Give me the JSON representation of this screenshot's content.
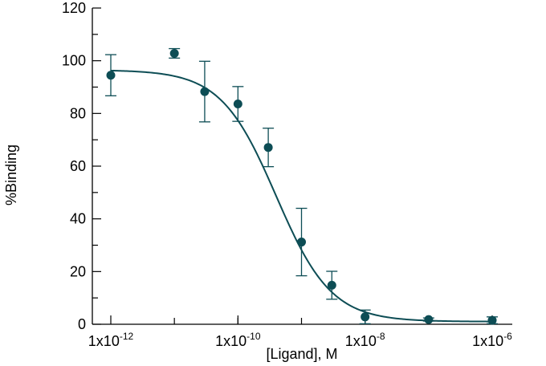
{
  "chart_data": {
    "type": "scatter",
    "xlabel": "[Ligand], M",
    "ylabel": "%Binding",
    "x_scale": "log",
    "xlim": [
      1e-12,
      1e-06
    ],
    "ylim": [
      0,
      120
    ],
    "x_ticks": [
      {
        "value": 1e-12,
        "base": "1x10",
        "exp": "-12"
      },
      {
        "value": 1e-10,
        "base": "1x10",
        "exp": "-10"
      },
      {
        "value": 1e-08,
        "base": "1x10",
        "exp": "-8"
      },
      {
        "value": 1e-06,
        "base": "1x10",
        "exp": "-6"
      }
    ],
    "y_ticks": [
      0,
      20,
      40,
      60,
      80,
      100,
      120
    ],
    "grid": false,
    "color": "#0d4d55",
    "points": [
      {
        "x": 1e-12,
        "y": 94.5,
        "err": 7.8
      },
      {
        "x": 1e-11,
        "y": 102.8,
        "err": 1.8
      },
      {
        "x": 3e-11,
        "y": 88.3,
        "err": 11.5
      },
      {
        "x": 1e-10,
        "y": 83.6,
        "err": 6.6
      },
      {
        "x": 3e-10,
        "y": 67.1,
        "err": 7.3
      },
      {
        "x": 1e-09,
        "y": 31.2,
        "err": 12.8
      },
      {
        "x": 3e-09,
        "y": 14.8,
        "err": 5.3
      },
      {
        "x": 1e-08,
        "y": 2.8,
        "err": 2.6
      },
      {
        "x": 1e-07,
        "y": 1.8,
        "err": 0.6
      },
      {
        "x": 1e-06,
        "y": 1.5,
        "err": 1.3
      }
    ],
    "fit": {
      "model": "sigmoidal dose-response",
      "top": 96.5,
      "bottom": 1.0,
      "log_ic50": -9.4,
      "hill_slope": -1.0
    }
  }
}
